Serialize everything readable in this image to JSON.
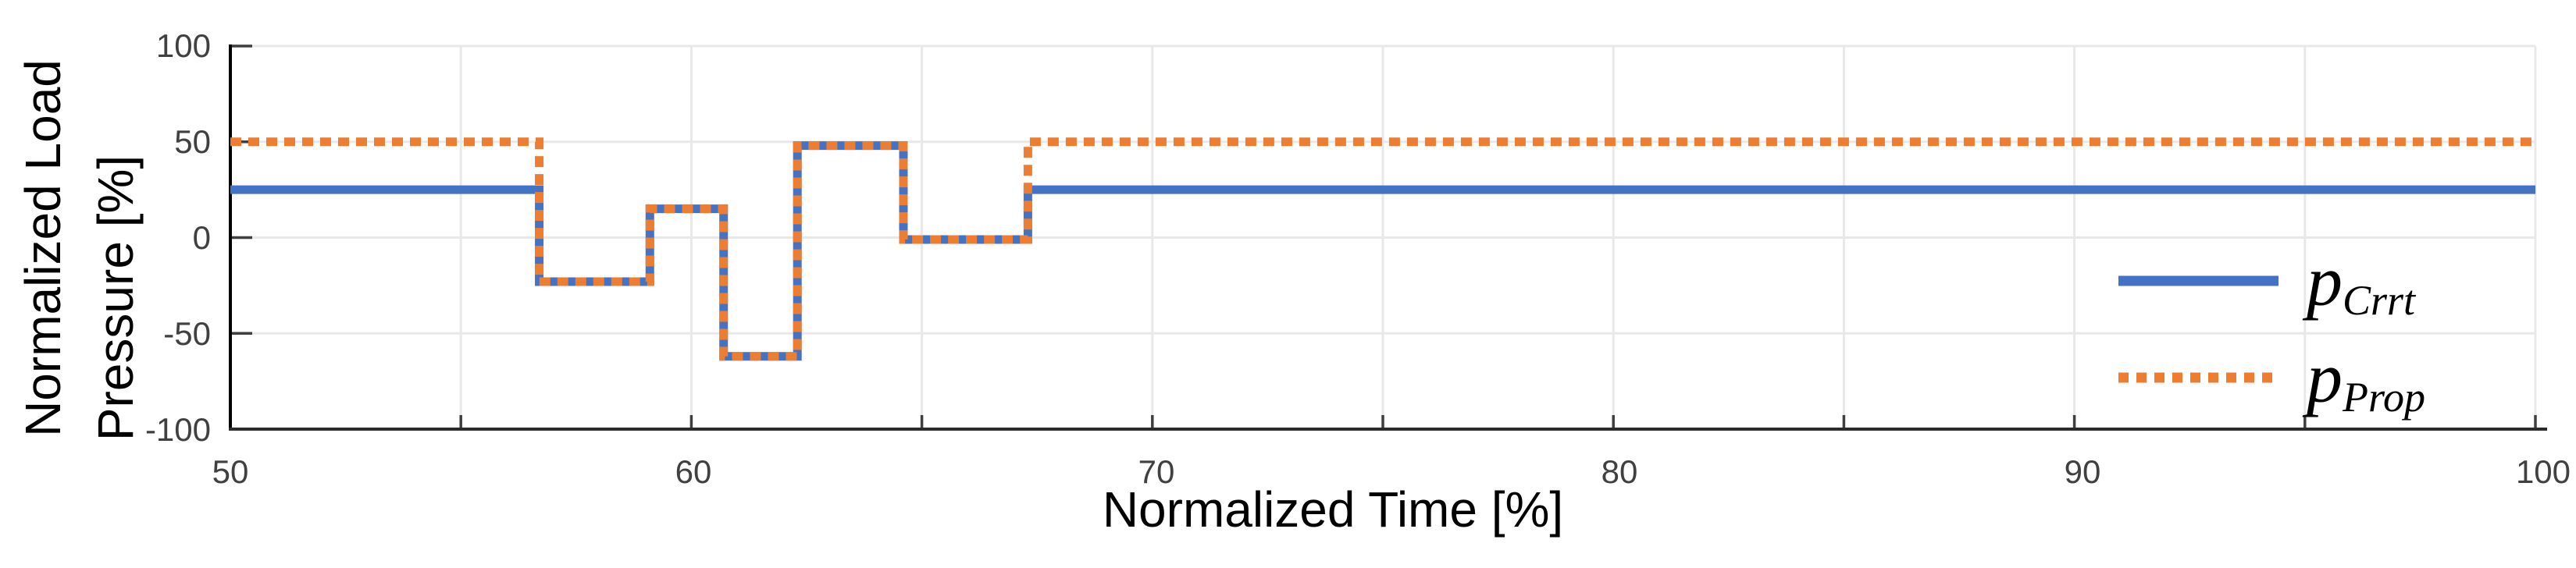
{
  "chart_data": {
    "type": "line",
    "title": "",
    "xlabel": "Normalized Time [%]",
    "ylabel": "Normalized Load Pressure [%]",
    "ylabel_lines": [
      "Normalized Load",
      "Pressure [%]"
    ],
    "xlim": [
      50,
      100
    ],
    "ylim": [
      -100,
      100
    ],
    "x_tick_labels": [
      "50",
      "60",
      "70",
      "80",
      "90",
      "100"
    ],
    "x_tick_values": [
      50,
      60,
      70,
      80,
      90,
      100
    ],
    "x_minor_tick_step": 5,
    "y_tick_labels": [
      "100",
      "50",
      "0",
      "-50",
      "-100"
    ],
    "y_tick_values": [
      100,
      50,
      0,
      -50,
      -100
    ],
    "grid": {
      "vertical_every": 5,
      "horizontal_values": [
        100,
        50,
        0,
        -50
      ]
    },
    "legend_position": "inside-right-middle",
    "series": [
      {
        "name": "p_Crrt",
        "color": "#4472C4",
        "style": "solid",
        "points": [
          [
            50,
            25
          ],
          [
            56.7,
            25
          ],
          [
            56.7,
            -23
          ],
          [
            59.1,
            -23
          ],
          [
            59.1,
            15
          ],
          [
            60.7,
            15
          ],
          [
            60.7,
            -62
          ],
          [
            62.3,
            -62
          ],
          [
            62.3,
            48
          ],
          [
            64.6,
            48
          ],
          [
            64.6,
            -1
          ],
          [
            67.3,
            -1
          ],
          [
            67.3,
            25
          ],
          [
            100,
            25
          ]
        ]
      },
      {
        "name": "p_Prop",
        "color": "#ED7D31",
        "style": "dotted",
        "points": [
          [
            50,
            50
          ],
          [
            56.7,
            50
          ],
          [
            56.7,
            -23
          ],
          [
            59.1,
            -23
          ],
          [
            59.1,
            15
          ],
          [
            60.7,
            15
          ],
          [
            60.7,
            -62
          ],
          [
            62.3,
            -62
          ],
          [
            62.3,
            48
          ],
          [
            64.6,
            48
          ],
          [
            64.6,
            -1
          ],
          [
            67.3,
            -1
          ],
          [
            67.3,
            50
          ],
          [
            100,
            50
          ]
        ]
      }
    ],
    "legend": {
      "entries": [
        {
          "base": "p",
          "sub": "Crrt",
          "color": "#4472C4",
          "style": "solid"
        },
        {
          "base": "p",
          "sub": "Prop",
          "color": "#ED7D31",
          "style": "dotted"
        }
      ]
    }
  },
  "colors": {
    "series_blue": "#4472C4",
    "series_orange": "#ED7D31",
    "gridline": "#E8E8E8",
    "axis_left": "#000000",
    "axis_bottom": "#2B2B2B",
    "tick_mark": "#3F3F3F",
    "tick_text": "#404040",
    "label_text": "#000000",
    "background": "#FFFFFF"
  }
}
